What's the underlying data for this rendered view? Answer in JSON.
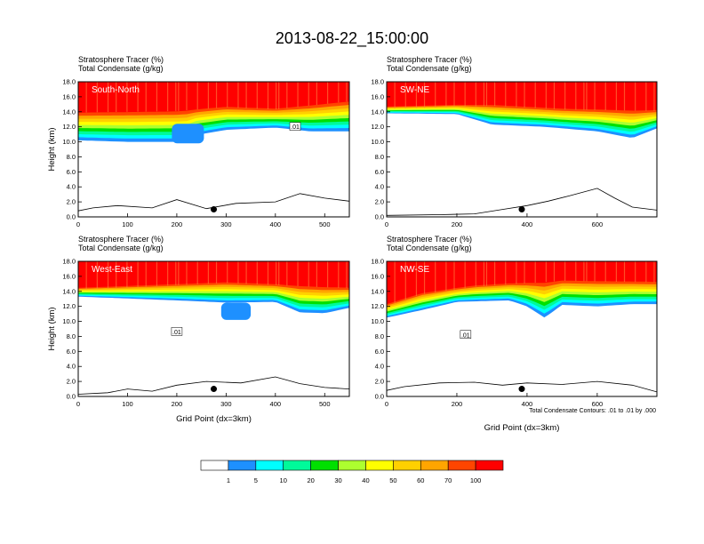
{
  "title": "2013-08-22_15:00:00",
  "colors": {
    "bg": "#ffffff",
    "levels": [
      "#ffffff",
      "#1e90ff",
      "#00ffff",
      "#00fa9a",
      "#00e000",
      "#adff2f",
      "#ffff00",
      "#ffd000",
      "#ffa500",
      "#ff4500",
      "#ff0000"
    ]
  },
  "chart_data": [
    {
      "type": "heatmap",
      "panel_label": "South-North",
      "subtitle1": "Stratosphere Tracer   (%)",
      "subtitle2": "Total Condensate   (g/kg)",
      "ylabel": "Height (km)",
      "xlabel": "",
      "xlim": [
        0,
        550
      ],
      "ylim": [
        0,
        18
      ],
      "xticks": [
        "0",
        "100",
        "200",
        "300",
        "400",
        "500"
      ],
      "yticks": [
        "0.0",
        "2.0",
        "4.0",
        "6.0",
        "8.0",
        "10.0",
        "12.0",
        "14.0",
        "16.0",
        "18.0"
      ],
      "tropopause_bottom_km": [
        [
          0,
          10.2
        ],
        [
          100,
          10.0
        ],
        [
          220,
          10.0
        ],
        [
          240,
          10.9
        ],
        [
          300,
          11.6
        ],
        [
          400,
          11.9
        ],
        [
          470,
          11.4
        ],
        [
          550,
          11.4
        ]
      ],
      "blue_blob": {
        "x": [
          190,
          255
        ],
        "y": [
          9.8,
          12.4
        ]
      },
      "tracer_100_bottom_km": [
        [
          0,
          14.3
        ],
        [
          200,
          14.5
        ],
        [
          300,
          15.0
        ],
        [
          400,
          14.7
        ],
        [
          550,
          15.8
        ]
      ],
      "terrain_km": [
        [
          0,
          0.8
        ],
        [
          30,
          1.2
        ],
        [
          80,
          1.5
        ],
        [
          150,
          1.2
        ],
        [
          200,
          2.3
        ],
        [
          260,
          1.1
        ],
        [
          320,
          1.8
        ],
        [
          400,
          2.0
        ],
        [
          450,
          3.1
        ],
        [
          500,
          2.5
        ],
        [
          550,
          2.1
        ]
      ],
      "marker": {
        "x": 275,
        "y": 1.0
      },
      "contour_label": ".01",
      "contour_label_pos": {
        "x": 440,
        "y": 12.0
      }
    },
    {
      "type": "heatmap",
      "panel_label": "SW-NE",
      "subtitle1": "Stratosphere Tracer   (%)",
      "subtitle2": "Total Condensate   (g/kg)",
      "ylabel": "",
      "xlabel": "",
      "xlim": [
        0,
        770
      ],
      "ylim": [
        0,
        18
      ],
      "xticks": [
        "0",
        "200",
        "400",
        "600"
      ],
      "yticks": [
        "0.0",
        "2.0",
        "4.0",
        "6.0",
        "8.0",
        "10.0",
        "12.0",
        "14.0",
        "16.0",
        "18.0"
      ],
      "tropopause_bottom_km": [
        [
          0,
          13.8
        ],
        [
          200,
          13.7
        ],
        [
          300,
          12.3
        ],
        [
          450,
          12.0
        ],
        [
          600,
          11.4
        ],
        [
          700,
          10.5
        ],
        [
          770,
          11.8
        ]
      ],
      "tracer_100_bottom_km": [
        [
          0,
          14.8
        ],
        [
          300,
          15.2
        ],
        [
          500,
          14.7
        ],
        [
          770,
          14.5
        ]
      ],
      "terrain_km": [
        [
          0,
          0.2
        ],
        [
          150,
          0.3
        ],
        [
          250,
          0.4
        ],
        [
          330,
          1.0
        ],
        [
          400,
          1.5
        ],
        [
          460,
          2.1
        ],
        [
          520,
          2.8
        ],
        [
          600,
          3.8
        ],
        [
          650,
          2.5
        ],
        [
          700,
          1.3
        ],
        [
          770,
          0.9
        ]
      ],
      "marker": {
        "x": 385,
        "y": 1.0
      },
      "contour_label": "",
      "contour_label_pos": {
        "x": 0,
        "y": 0
      }
    },
    {
      "type": "heatmap",
      "panel_label": "West-East",
      "subtitle1": "Stratosphere Tracer   (%)",
      "subtitle2": "Total Condensate   (g/kg)",
      "ylabel": "Height (km)",
      "xlabel": "Grid Point (dx=3km)",
      "xlim": [
        0,
        550
      ],
      "ylim": [
        0,
        18
      ],
      "xticks": [
        "0",
        "100",
        "200",
        "300",
        "400",
        "500"
      ],
      "yticks": [
        "0.0",
        "2.0",
        "4.0",
        "6.0",
        "8.0",
        "10.0",
        "12.0",
        "14.0",
        "16.0",
        "18.0"
      ],
      "tropopause_bottom_km": [
        [
          0,
          13.3
        ],
        [
          200,
          12.8
        ],
        [
          300,
          12.5
        ],
        [
          400,
          12.6
        ],
        [
          450,
          11.2
        ],
        [
          500,
          11.1
        ],
        [
          550,
          11.8
        ]
      ],
      "blue_blob": {
        "x": [
          290,
          350
        ],
        "y": [
          10.2,
          12.5
        ]
      },
      "tracer_100_bottom_km": [
        [
          0,
          14.6
        ],
        [
          200,
          15.2
        ],
        [
          300,
          15.5
        ],
        [
          550,
          14.8
        ]
      ],
      "terrain_km": [
        [
          0,
          0.3
        ],
        [
          60,
          0.5
        ],
        [
          100,
          1.0
        ],
        [
          150,
          0.7
        ],
        [
          200,
          1.5
        ],
        [
          260,
          2.0
        ],
        [
          330,
          1.8
        ],
        [
          400,
          2.6
        ],
        [
          450,
          1.7
        ],
        [
          500,
          1.2
        ],
        [
          550,
          1.0
        ]
      ],
      "marker": {
        "x": 275,
        "y": 1.0
      },
      "contour_label": ".01",
      "contour_label_pos": {
        "x": 200,
        "y": 8.6
      }
    },
    {
      "type": "heatmap",
      "panel_label": "NW-SE",
      "subtitle1": "Stratosphere Tracer   (%)",
      "subtitle2": "Total Condensate   (g/kg)",
      "ylabel": "",
      "xlabel": "Grid Point (dx=3km)",
      "xlim": [
        0,
        770
      ],
      "ylim": [
        0,
        18
      ],
      "xticks": [
        "0",
        "200",
        "400",
        "600"
      ],
      "yticks": [
        "0.0",
        "2.0",
        "4.0",
        "6.0",
        "8.0",
        "10.0",
        "12.0",
        "14.0",
        "16.0",
        "18.0"
      ],
      "tropopause_bottom_km": [
        [
          0,
          10.5
        ],
        [
          100,
          11.5
        ],
        [
          200,
          12.6
        ],
        [
          350,
          12.8
        ],
        [
          400,
          12.0
        ],
        [
          450,
          10.5
        ],
        [
          500,
          12.2
        ],
        [
          600,
          12.0
        ],
        [
          700,
          12.3
        ],
        [
          770,
          12.3
        ]
      ],
      "tracer_100_bottom_km": [
        [
          0,
          12.5
        ],
        [
          100,
          14.0
        ],
        [
          250,
          15.0
        ],
        [
          500,
          15.8
        ],
        [
          770,
          15.6
        ]
      ],
      "terrain_km": [
        [
          0,
          0.8
        ],
        [
          50,
          1.3
        ],
        [
          150,
          1.8
        ],
        [
          250,
          1.9
        ],
        [
          330,
          1.5
        ],
        [
          400,
          1.8
        ],
        [
          500,
          1.6
        ],
        [
          600,
          2.0
        ],
        [
          700,
          1.5
        ],
        [
          770,
          0.6
        ]
      ],
      "marker": {
        "x": 385,
        "y": 1.0
      },
      "contour_label": ".01",
      "contour_label_pos": {
        "x": 225,
        "y": 8.2
      }
    }
  ],
  "colorbar": {
    "labels": [
      "1",
      "5",
      "10",
      "20",
      "30",
      "40",
      "50",
      "60",
      "70",
      "100"
    ]
  },
  "footnote": "Total Condensate Contours: .01 to .01 by .000"
}
